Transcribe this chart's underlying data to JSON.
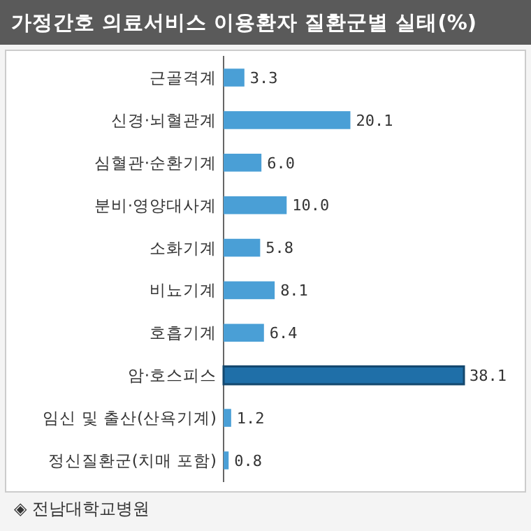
{
  "chart_data": {
    "type": "bar",
    "orientation": "horizontal",
    "title": "가정간호 의료서비스 이용환자 질환군별 실태(%)",
    "categories": [
      "근골격계",
      "신경·뇌혈관계",
      "심혈관·순환기계",
      "분비·영양대사계",
      "소화기계",
      "비뇨기계",
      "호흡기계",
      "암·호스피스",
      "임신 및 출산(산욕기계)",
      "정신질환군(치매 포함)"
    ],
    "values": [
      3.3,
      20.1,
      6.0,
      10.0,
      5.8,
      8.1,
      6.4,
      38.1,
      1.2,
      0.8
    ],
    "value_labels": [
      "3.3",
      "20.1",
      "6.0",
      "10.0",
      "5.8",
      "8.1",
      "6.4",
      "38.1",
      "1.2",
      "0.8"
    ],
    "colors": [
      "#4a9fd6",
      "#4a9fd6",
      "#4a9fd6",
      "#4a9fd6",
      "#4a9fd6",
      "#4a9fd6",
      "#4a9fd6",
      "#1f6fa8",
      "#4a9fd6",
      "#4a9fd6"
    ],
    "annotations": [
      "◈ 전남대학교병원"
    ]
  }
}
